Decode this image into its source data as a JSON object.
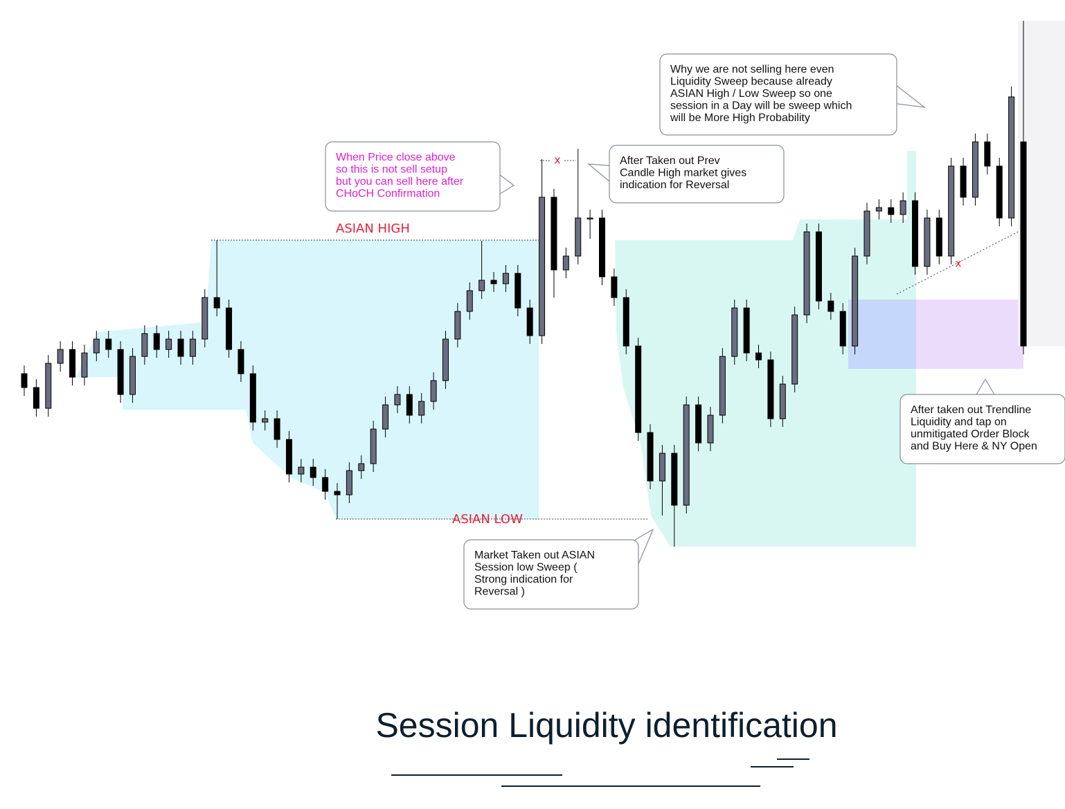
{
  "chart_data": {
    "type": "candlestick",
    "title": "Session Liquidity identification",
    "ylim": [
      0,
      1000
    ],
    "open": [
      460,
      440,
      410,
      475,
      495,
      455,
      490,
      510,
      495,
      430,
      485,
      518,
      495,
      510,
      485,
      510,
      570,
      555,
      495,
      460,
      390,
      395,
      365,
      315,
      325,
      310,
      290,
      285,
      320,
      330,
      380,
      415,
      430,
      400,
      420,
      450,
      510,
      550,
      580,
      595,
      590,
      605,
      555,
      515,
      715,
      610,
      630,
      685,
      685,
      600,
      570,
      500,
      375,
      305,
      345,
      270,
      415,
      360,
      400,
      485,
      555,
      490,
      480,
      395,
      445,
      545,
      665,
      565,
      550,
      500,
      630,
      695,
      700,
      690,
      710,
      615,
      685,
      630,
      760,
      715,
      795,
      760,
      685,
      795
    ],
    "high": [
      472,
      452,
      487,
      507,
      507,
      502,
      522,
      522,
      507,
      497,
      530,
      530,
      522,
      522,
      522,
      582,
      653,
      567,
      507,
      472,
      407,
      407,
      377,
      337,
      337,
      322,
      302,
      332,
      342,
      392,
      427,
      442,
      442,
      432,
      462,
      522,
      562,
      592,
      652,
      607,
      617,
      617,
      567,
      770,
      727,
      642,
      785,
      697,
      697,
      612,
      582,
      512,
      387,
      357,
      357,
      427,
      427,
      412,
      497,
      567,
      567,
      502,
      492,
      457,
      557,
      677,
      677,
      577,
      562,
      642,
      707,
      712,
      712,
      722,
      722,
      697,
      697,
      772,
      772,
      807,
      807,
      772,
      875,
      970
    ],
    "low": [
      428,
      398,
      398,
      463,
      443,
      443,
      478,
      483,
      418,
      418,
      473,
      483,
      483,
      473,
      473,
      498,
      543,
      483,
      448,
      378,
      378,
      353,
      303,
      303,
      298,
      278,
      250,
      273,
      308,
      318,
      368,
      403,
      388,
      388,
      408,
      438,
      498,
      538,
      568,
      578,
      578,
      543,
      503,
      503,
      570,
      598,
      618,
      655,
      588,
      558,
      488,
      363,
      293,
      255,
      210,
      258,
      348,
      348,
      388,
      473,
      478,
      468,
      383,
      383,
      433,
      533,
      553,
      538,
      488,
      488,
      618,
      683,
      678,
      678,
      603,
      603,
      618,
      618,
      703,
      703,
      748,
      673,
      673,
      488
    ],
    "close": [
      440,
      410,
      475,
      495,
      455,
      490,
      510,
      495,
      430,
      485,
      518,
      495,
      510,
      485,
      510,
      570,
      555,
      495,
      460,
      390,
      395,
      365,
      315,
      325,
      310,
      290,
      285,
      320,
      330,
      380,
      415,
      430,
      400,
      420,
      450,
      510,
      550,
      580,
      595,
      590,
      605,
      555,
      515,
      715,
      610,
      630,
      685,
      685,
      600,
      570,
      500,
      375,
      305,
      345,
      270,
      415,
      360,
      400,
      485,
      555,
      490,
      480,
      395,
      445,
      545,
      665,
      565,
      550,
      500,
      630,
      695,
      700,
      690,
      710,
      615,
      685,
      630,
      760,
      715,
      795,
      760,
      685,
      860,
      500
    ],
    "bull_color": "#6b6e80",
    "bear_color": "#000000",
    "labels": {
      "asian_high": "ASIAN  HIGH",
      "asian_low": "ASIAN LOW",
      "sweep_mark": "x",
      "trend_mark": "x"
    },
    "callouts": [
      {
        "color": "#e020d0",
        "lines": [
          "When Price close above",
          "so this is not sell setup",
          "but you can sell here after",
          "CHoCH Confirmation"
        ]
      },
      {
        "color": "#111111",
        "lines": [
          "After Taken out Prev",
          "Candle High market gives",
          "indication for Reversal"
        ]
      },
      {
        "color": "#111111",
        "lines": [
          "Why we are not selling here even",
          "Liquidity  Sweep because already",
          "ASIAN High / Low Sweep so one",
          "session in a Day will be sweep which",
          "will be More High Probability"
        ]
      },
      {
        "color": "#111111",
        "lines": [
          "Market Taken out ASIAN",
          "Session low Sweep (",
          "Strong indication for",
          "Reversal )"
        ]
      },
      {
        "color": "#111111",
        "lines": [
          "After taken out Trendline",
          "Liquidity and tap on",
          "unmitigated Order Block",
          "and Buy Here & NY Open"
        ]
      }
    ]
  }
}
